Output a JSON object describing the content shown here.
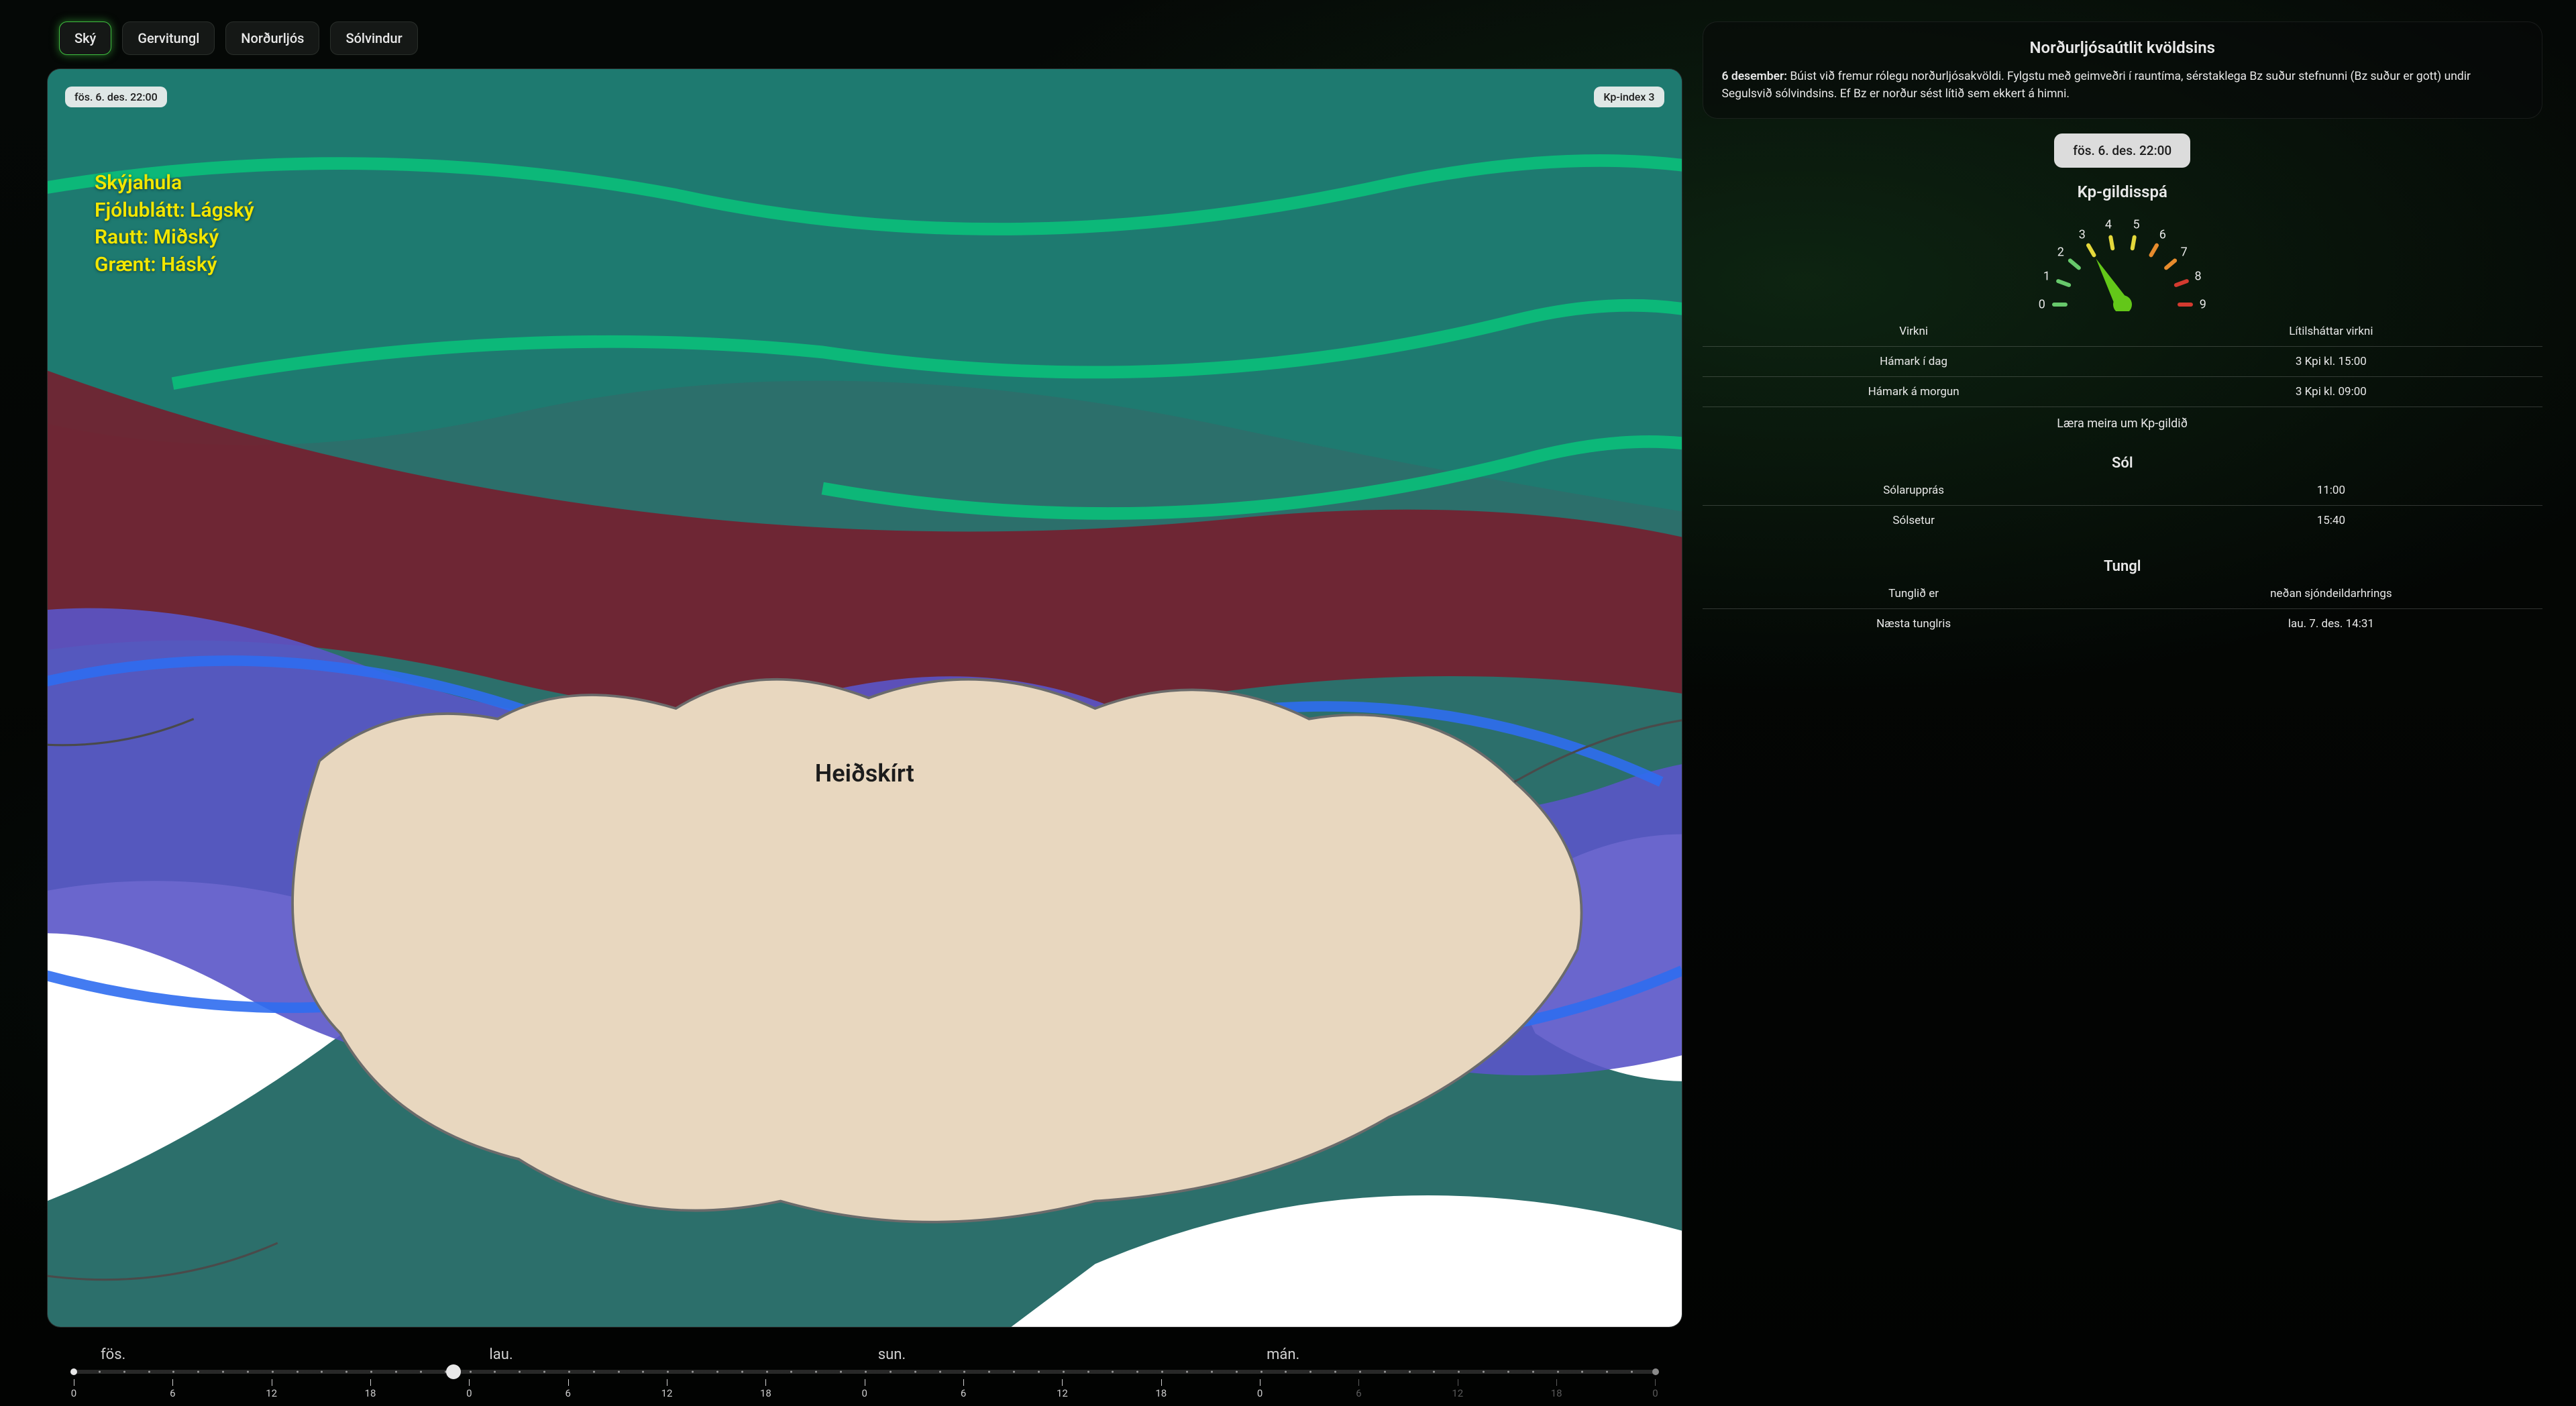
{
  "tabs": {
    "items": [
      "Ský",
      "Gervitungl",
      "Norðurljós",
      "Sólvindur"
    ],
    "active_index": 0
  },
  "map": {
    "time_badge": "fös. 6. des. 22:00",
    "kp_badge": "Kp-index 3",
    "center_label": "Heiðskírt",
    "legend": {
      "title": "Skýjahula",
      "line_purple": "Fjólublátt: Lágský",
      "line_red": "Rautt: Miðský",
      "line_green": "Grænt: Háský"
    },
    "colors": {
      "sea": "#2c6f6b",
      "land": "#e8d7bf",
      "low_cloud": "#5a55c8",
      "low_cloud_edge": "#2f6df0",
      "mid_cloud": "#7a1a2a",
      "high_cloud": "#0abf7a",
      "white": "#ffffff"
    }
  },
  "slider": {
    "day_labels": [
      "fös.",
      "lau.",
      "sun.",
      "mán."
    ],
    "hour_ticks": [
      "0",
      "6",
      "12",
      "18",
      "0",
      "6",
      "12",
      "18",
      "0",
      "6",
      "12",
      "18",
      "0",
      "6",
      "12",
      "18",
      "0"
    ],
    "dimmed_from_index": 13,
    "thumb_percent": 24
  },
  "forecast": {
    "title": "Norðurljósaútlit kvöldsins",
    "date_prefix": "6 desember:",
    "body": "Búist við fremur rólegu norðurljósakvöldi. Fylgstu með geimveðri í rauntíma, sérstaklega Bz suður stefnunni (Bz suður er gott) undir Segulsvið sólvindsins. Ef Bz er norður sést lítið sem ekkert á himni."
  },
  "time_chip": "fös. 6. des. 22:00",
  "kp": {
    "title": "Kp-gildisspá",
    "ticks": [
      "0",
      "1",
      "2",
      "3",
      "4",
      "5",
      "6",
      "7",
      "8",
      "9"
    ],
    "tick_colors": [
      "#67c96b",
      "#67c96b",
      "#67c96b",
      "#e4d83b",
      "#e4d83b",
      "#e4d83b",
      "#e78b2d",
      "#e78b2d",
      "#d33a2f",
      "#d33a2f"
    ],
    "value": 3,
    "needle_color": "#63c719",
    "rows": [
      {
        "label": "Virkni",
        "value": "Lítilsháttar virkni"
      },
      {
        "label": "Hámark í dag",
        "value": "3 Kpi kl. 15:00"
      },
      {
        "label": "Hámark á morgun",
        "value": "3 Kpi kl. 09:00"
      }
    ],
    "learn": "Læra meira um Kp-gildið"
  },
  "sun": {
    "title": "Sól",
    "rows": [
      {
        "label": "Sólarupprás",
        "value": "11:00"
      },
      {
        "label": "Sólsetur",
        "value": "15:40"
      }
    ]
  },
  "moon": {
    "title": "Tungl",
    "rows": [
      {
        "label": "Tunglið er",
        "value": "neðan sjóndeildarhrings"
      },
      {
        "label": "Næsta tunglris",
        "value": "lau. 7. des. 14:31"
      }
    ]
  }
}
